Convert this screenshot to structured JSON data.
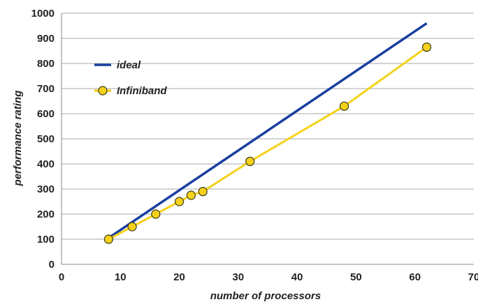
{
  "chart_data": {
    "type": "line",
    "xlabel": "number of processors",
    "ylabel": "performance rating",
    "xlim": [
      0,
      70
    ],
    "ylim": [
      0,
      1000
    ],
    "xticks": [
      0,
      10,
      20,
      30,
      40,
      50,
      60,
      70
    ],
    "yticks": [
      0,
      100,
      200,
      300,
      400,
      500,
      600,
      700,
      800,
      900,
      1000
    ],
    "grid": "horizontal",
    "legend_position": "upper-left",
    "series": [
      {
        "name": "ideal",
        "color": "#1a3fa0",
        "marker": "none",
        "points": [
          [
            8,
            105
          ],
          [
            62,
            960
          ]
        ]
      },
      {
        "name": "Infiniband",
        "color": "#f5d21a",
        "marker": "circle",
        "points": [
          [
            8,
            100
          ],
          [
            12,
            150
          ],
          [
            16,
            200
          ],
          [
            20,
            250
          ],
          [
            22,
            275
          ],
          [
            24,
            290
          ],
          [
            32,
            410
          ],
          [
            48,
            630
          ],
          [
            62,
            865
          ]
        ]
      }
    ]
  }
}
